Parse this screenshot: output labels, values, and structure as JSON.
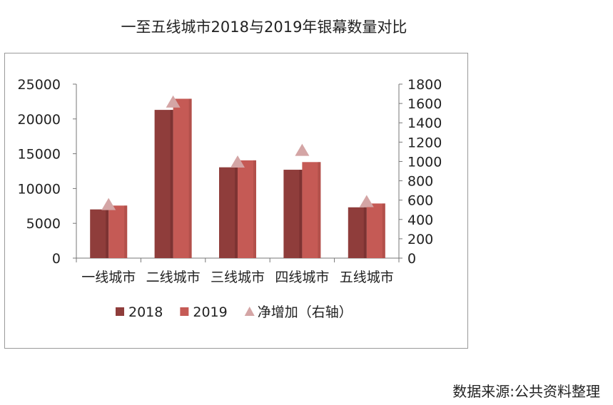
{
  "chart_data": {
    "type": "bar",
    "title": "一至五线城市2018与2019年银幕数量对比",
    "categories": [
      "一线城市",
      "二线城市",
      "三线城市",
      "四线城市",
      "五线城市"
    ],
    "series": [
      {
        "name": "2018",
        "axis": "left",
        "values": [
          7000,
          21300,
          13050,
          12700,
          7300
        ],
        "color": "#8f3d3b"
      },
      {
        "name": "2019",
        "axis": "left",
        "values": [
          7550,
          22900,
          14050,
          13800,
          7850
        ],
        "color": "#c55a55"
      },
      {
        "name": "净增加（右轴）",
        "axis": "right",
        "kind": "scatter",
        "marker": "triangle",
        "values": [
          560,
          1620,
          1000,
          1120,
          590
        ],
        "color": "#d4a5a5"
      }
    ],
    "y_left": {
      "min": 0,
      "max": 25000,
      "ticks": [
        "0",
        "5000",
        "10000",
        "15000",
        "20000",
        "25000"
      ]
    },
    "y_right": {
      "min": 0,
      "max": 1800,
      "ticks": [
        "0",
        "200",
        "400",
        "600",
        "800",
        "1000",
        "1200",
        "1400",
        "1600",
        "1800"
      ]
    },
    "grid": false,
    "legend_position": "bottom"
  },
  "source": "数据来源:公共资料整理"
}
